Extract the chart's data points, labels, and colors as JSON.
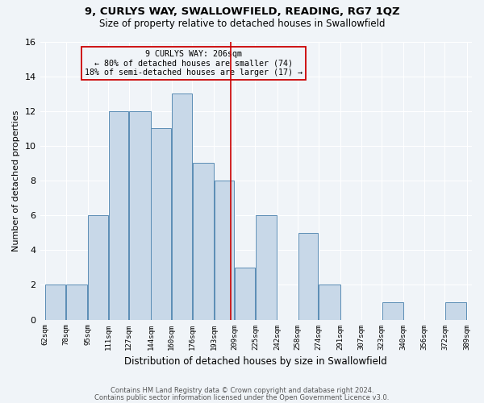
{
  "title": "9, CURLYS WAY, SWALLOWFIELD, READING, RG7 1QZ",
  "subtitle": "Size of property relative to detached houses in Swallowfield",
  "xlabel": "Distribution of detached houses by size in Swallowfield",
  "ylabel": "Number of detached properties",
  "footer1": "Contains HM Land Registry data © Crown copyright and database right 2024.",
  "footer2": "Contains public sector information licensed under the Open Government Licence v3.0.",
  "annotation_line1": "9 CURLYS WAY: 206sqm",
  "annotation_line2": "← 80% of detached houses are smaller (74)",
  "annotation_line3": "18% of semi-detached houses are larger (17) →",
  "property_size": 206,
  "bar_edges": [
    62,
    78,
    95,
    111,
    127,
    144,
    160,
    176,
    193,
    209,
    225,
    242,
    258,
    274,
    291,
    307,
    323,
    340,
    356,
    372,
    389
  ],
  "bar_heights": [
    2,
    2,
    6,
    12,
    12,
    11,
    13,
    9,
    8,
    3,
    6,
    0,
    5,
    2,
    0,
    0,
    1,
    0,
    0,
    1
  ],
  "bar_color": "#c8d8e8",
  "bar_edge_color": "#5a8db5",
  "highlight_line_color": "#cc0000",
  "background_color": "#f0f4f8",
  "ylim": [
    0,
    16
  ],
  "yticks": [
    0,
    2,
    4,
    6,
    8,
    10,
    12,
    14,
    16
  ],
  "grid_color": "#ffffff",
  "annotation_box_color": "#cc0000",
  "tick_labels": [
    "62sqm",
    "78sqm",
    "95sqm",
    "111sqm",
    "127sqm",
    "144sqm",
    "160sqm",
    "176sqm",
    "193sqm",
    "209sqm",
    "225sqm",
    "242sqm",
    "258sqm",
    "274sqm",
    "291sqm",
    "307sqm",
    "323sqm",
    "340sqm",
    "356sqm",
    "372sqm",
    "389sqm"
  ]
}
